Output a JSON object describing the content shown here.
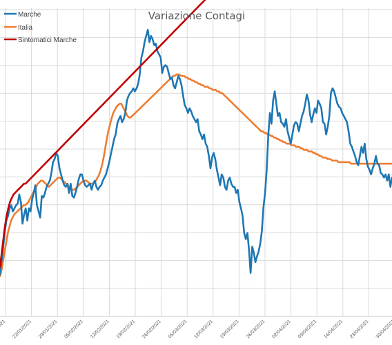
{
  "chart_data": {
    "type": "line",
    "title": "Variazione Contagi",
    "xlabel": "",
    "ylabel": "",
    "grid": true,
    "legend_position": "top-left",
    "x_tick_labels": [
      "15/01/2021",
      "22/01/2021",
      "29/01/2021",
      "05/02/2021",
      "12/02/2021",
      "19/02/2021",
      "26/02/2021",
      "05/03/2021",
      "12/03/2021",
      "19/03/2021",
      "26/03/2021",
      "02/04/2021",
      "09/04/2021",
      "16/04/2021",
      "23/04/2021",
      "30/04/2021",
      "07/05/2021",
      "14/05/2021",
      "21/05/2021",
      "28/05/2021"
    ],
    "series": [
      {
        "name": "Marche",
        "color": "#1f77b4",
        "values": [
          27,
          36,
          45,
          55,
          62,
          65,
          70,
          72,
          68,
          70,
          72,
          73,
          79,
          74,
          60,
          66,
          70,
          62,
          70,
          68,
          76,
          80,
          85,
          72,
          68,
          64,
          78,
          77,
          80,
          84,
          86,
          88,
          93,
          100,
          102,
          106,
          104,
          96,
          92,
          88,
          85,
          84,
          86,
          80,
          86,
          78,
          77,
          80,
          84,
          89,
          92,
          92,
          88,
          85,
          84,
          85,
          86,
          82,
          86,
          88,
          84,
          82,
          84,
          85,
          88,
          90,
          92,
          96,
          100,
          105,
          110,
          115,
          118,
          125,
          128,
          130,
          126,
          128,
          132,
          140,
          143,
          145,
          146,
          148,
          146,
          148,
          151,
          157,
          168,
          172,
          178,
          182,
          186,
          178,
          182,
          180,
          176,
          177,
          172,
          170,
          168,
          158,
          162,
          163,
          162,
          158,
          154,
          155,
          150,
          148,
          152,
          156,
          154,
          150,
          143,
          137,
          135,
          132,
          135,
          133,
          130,
          128,
          126,
          128,
          120,
          118,
          115,
          118,
          112,
          110,
          104,
          96,
          103,
          106,
          102,
          95,
          90,
          85,
          92,
          90,
          84,
          82,
          88,
          90,
          86,
          84,
          84,
          80,
          82,
          74,
          70,
          65,
          54,
          50,
          54,
          43,
          28,
          45,
          41,
          35,
          39,
          42,
          47,
          55,
          71,
          80,
          95,
          118,
          132,
          125,
          140,
          146,
          138,
          130,
          132,
          126,
          125,
          123,
          128,
          120,
          116,
          112,
          118,
          124,
          126,
          125,
          120,
          125,
          130,
          133,
          138,
          144,
          140,
          131,
          126,
          131,
          135,
          132,
          140,
          138,
          135,
          126,
          125,
          118,
          123,
          130,
          145,
          148,
          146,
          142,
          138,
          136,
          135,
          132,
          130,
          128,
          126,
          120,
          112,
          110,
          107,
          104,
          100,
          98,
          104,
          110,
          106,
          112,
          102,
          97,
          95,
          92,
          96,
          99,
          104,
          99,
          98,
          93,
          92,
          90,
          92,
          88,
          92,
          84,
          90
        ]
      },
      {
        "name": "Italia",
        "color": "#ed7d31",
        "values": [
          26,
          30,
          36,
          42,
          48,
          54,
          58,
          62,
          64,
          66,
          67,
          68,
          69,
          70,
          71,
          72,
          72,
          73,
          74,
          76,
          78,
          80,
          82,
          84,
          86,
          87,
          88,
          88,
          87,
          86,
          85,
          84,
          85,
          86,
          87,
          88,
          89,
          90,
          90,
          89,
          88,
          87,
          86,
          85,
          84,
          83,
          82,
          82,
          83,
          84,
          85,
          86,
          87,
          88,
          88,
          88,
          87,
          86,
          86,
          86,
          87,
          88,
          90,
          92,
          95,
          99,
          104,
          110,
          116,
          121,
          125,
          129,
          132,
          134,
          136,
          137,
          138,
          138,
          136,
          134,
          132,
          130,
          129,
          129,
          130,
          131,
          132,
          133,
          134,
          135,
          136,
          137,
          138,
          139,
          140,
          141,
          142,
          143,
          144,
          145,
          146,
          147,
          148,
          149,
          150,
          151,
          152,
          153,
          154,
          155,
          156,
          156,
          157,
          157,
          157,
          156,
          156,
          156,
          155,
          155,
          154,
          154,
          153,
          153,
          152,
          152,
          151,
          151,
          150,
          150,
          149,
          149,
          149,
          148,
          148,
          147,
          147,
          147,
          146,
          146,
          145,
          145,
          144,
          143,
          142,
          141,
          140,
          139,
          138,
          137,
          136,
          135,
          134,
          133,
          132,
          131,
          130,
          129,
          128,
          127,
          126,
          125,
          124,
          123,
          122,
          121,
          120,
          120,
          119,
          119,
          118,
          118,
          117,
          117,
          116,
          116,
          115,
          115,
          114,
          114,
          113,
          113,
          112,
          112,
          112,
          111,
          111,
          111,
          110,
          110,
          110,
          109,
          109,
          108,
          108,
          108,
          107,
          107,
          107,
          106,
          106,
          105,
          105,
          104,
          104,
          103,
          103,
          103,
          102,
          102,
          102,
          101,
          101,
          101,
          101,
          100,
          100,
          100,
          100,
          100,
          100,
          100,
          100,
          99,
          99,
          99,
          99,
          99,
          99,
          99,
          99,
          99,
          99,
          99,
          99,
          99,
          99,
          99,
          99,
          99,
          99,
          99,
          99,
          99,
          99,
          99,
          99,
          99,
          99,
          99
        ]
      },
      {
        "name": "Sintomatici Marche",
        "color": "#c00000",
        "values": [
          32,
          40,
          48,
          56,
          63,
          68,
          72,
          75,
          77,
          79,
          80,
          81,
          82,
          83,
          84,
          85,
          86,
          86,
          87,
          88,
          89,
          90,
          91,
          92,
          93,
          94,
          95,
          96,
          97,
          98,
          99,
          100,
          101,
          102,
          103,
          104,
          105,
          106,
          107,
          108,
          109,
          110,
          111,
          112,
          113,
          114,
          115,
          116,
          117,
          118,
          119,
          120,
          121,
          122,
          123,
          124,
          125,
          126,
          127,
          128,
          129,
          130,
          131,
          132,
          133,
          134,
          135,
          136,
          137,
          138,
          139,
          140,
          141,
          142,
          143,
          144,
          145,
          146,
          147,
          148,
          149,
          150,
          151,
          152,
          153,
          154,
          155,
          156,
          157,
          158,
          159,
          160,
          161,
          162,
          163,
          164,
          165,
          166,
          167,
          168,
          169,
          170,
          171,
          172,
          173,
          174,
          175,
          176,
          177,
          178,
          179,
          180,
          181,
          182,
          183,
          184,
          185,
          186,
          187,
          188,
          189,
          190,
          191,
          192,
          193,
          194,
          195,
          196,
          197,
          198,
          199,
          200,
          201,
          202,
          203,
          204,
          205,
          206,
          207,
          208,
          209,
          210,
          211,
          212,
          213,
          214,
          215,
          216,
          217,
          218,
          219,
          220,
          221,
          222,
          223,
          224,
          225,
          226,
          227,
          228,
          229,
          230,
          231,
          232,
          233,
          234,
          235,
          236,
          237,
          238,
          239,
          240,
          241,
          242,
          243,
          244,
          245,
          246,
          247,
          248,
          249,
          250,
          251,
          252,
          253,
          254,
          255,
          256,
          257,
          258,
          259,
          260,
          261,
          262,
          263,
          264,
          265,
          266,
          267,
          268,
          269,
          270,
          271,
          272,
          273,
          274,
          275,
          276,
          277,
          278,
          279,
          280,
          281,
          282,
          283,
          284,
          285,
          286,
          287,
          288,
          289,
          290,
          291,
          292,
          293,
          294,
          295,
          296,
          297,
          298,
          299,
          300,
          301,
          302,
          303,
          304,
          305,
          306,
          307,
          308,
          309,
          310,
          311,
          312,
          313,
          314,
          315,
          316,
          317,
          318,
          319,
          320,
          321,
          322,
          323,
          324,
          325,
          326,
          327,
          328,
          329,
          330
        ]
      }
    ]
  }
}
